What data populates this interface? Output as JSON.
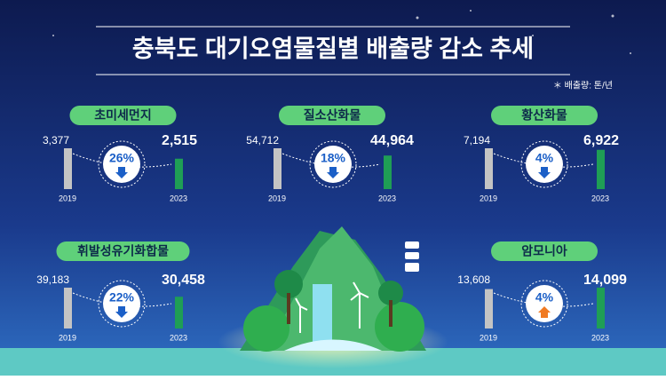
{
  "title": "충북도 대기오염물질별 배출량 감소 추세",
  "unit_note": "＊ 배출량: 톤/년",
  "chart_data": [
    {
      "type": "bar",
      "title": "초미세먼지",
      "categories": [
        "2019",
        "2023"
      ],
      "values": [
        3377,
        2515
      ],
      "value_labels": [
        "3,377",
        "2,515"
      ],
      "colors": [
        "#c4c4c4",
        "#1f9e55"
      ],
      "change": {
        "value": 26,
        "label": "26%",
        "direction": "down"
      }
    },
    {
      "type": "bar",
      "title": "질소산화물",
      "categories": [
        "2019",
        "2023"
      ],
      "values": [
        54712,
        44964
      ],
      "value_labels": [
        "54,712",
        "44,964"
      ],
      "colors": [
        "#c4c4c4",
        "#1f9e55"
      ],
      "change": {
        "value": 18,
        "label": "18%",
        "direction": "down"
      }
    },
    {
      "type": "bar",
      "title": "황산화물",
      "categories": [
        "2019",
        "2023"
      ],
      "values": [
        7194,
        6922
      ],
      "value_labels": [
        "7,194",
        "6,922"
      ],
      "colors": [
        "#c4c4c4",
        "#1f9e55"
      ],
      "change": {
        "value": 4,
        "label": "4%",
        "direction": "down"
      }
    },
    {
      "type": "bar",
      "title": "휘발성유기화합물",
      "categories": [
        "2019",
        "2023"
      ],
      "values": [
        39183,
        30458
      ],
      "value_labels": [
        "39,183",
        "30,458"
      ],
      "colors": [
        "#c4c4c4",
        "#1f9e55"
      ],
      "change": {
        "value": 22,
        "label": "22%",
        "direction": "down"
      }
    },
    {
      "type": "bar",
      "title": "암모니아",
      "categories": [
        "2019",
        "2023"
      ],
      "values": [
        13608,
        14099
      ],
      "value_labels": [
        "13,608",
        "14,099"
      ],
      "colors": [
        "#c4c4c4",
        "#1f9e55"
      ],
      "change": {
        "value": 4,
        "label": "4%",
        "direction": "up"
      }
    }
  ]
}
